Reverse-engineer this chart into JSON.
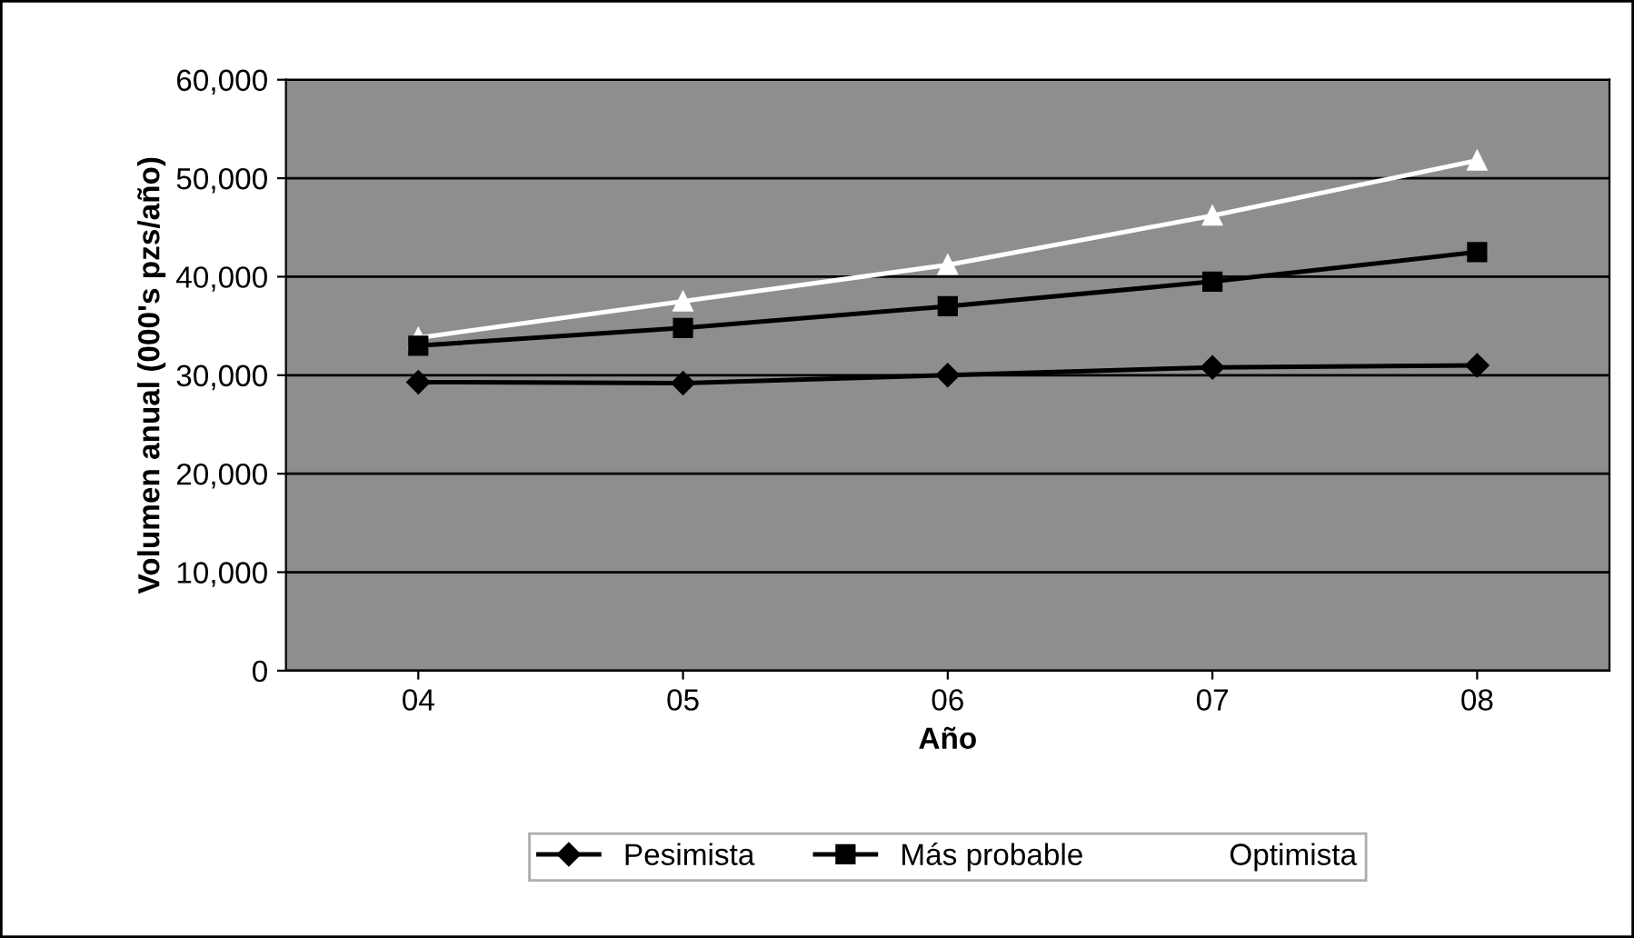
{
  "chart_data": {
    "type": "line",
    "xlabel": "Año",
    "ylabel": "Volumen anual (000's pzs/año)",
    "categories": [
      "04",
      "05",
      "06",
      "07",
      "08"
    ],
    "series": [
      {
        "name": "Pesimista",
        "color": "#000000",
        "marker": "diamond",
        "values": [
          29300,
          29200,
          30000,
          30800,
          31000
        ]
      },
      {
        "name": "Más probable",
        "color": "#000000",
        "marker": "square",
        "values": [
          33000,
          34800,
          37000,
          39500,
          42500
        ]
      },
      {
        "name": "Optimista",
        "color": "#ffffff",
        "marker": "triangle",
        "values": [
          33800,
          37500,
          41200,
          46200,
          51800
        ]
      }
    ],
    "ylim": [
      0,
      60000
    ],
    "yticks": [
      {
        "value": 0,
        "label": "0"
      },
      {
        "value": 10000,
        "label": "10,000"
      },
      {
        "value": 20000,
        "label": "20,000"
      },
      {
        "value": 30000,
        "label": "30,000"
      },
      {
        "value": 40000,
        "label": "40,000"
      },
      {
        "value": 50000,
        "label": "50,000"
      },
      {
        "value": 60000,
        "label": "60,000"
      }
    ],
    "grid": "y",
    "legend": "bottom",
    "line_style": "solid"
  }
}
